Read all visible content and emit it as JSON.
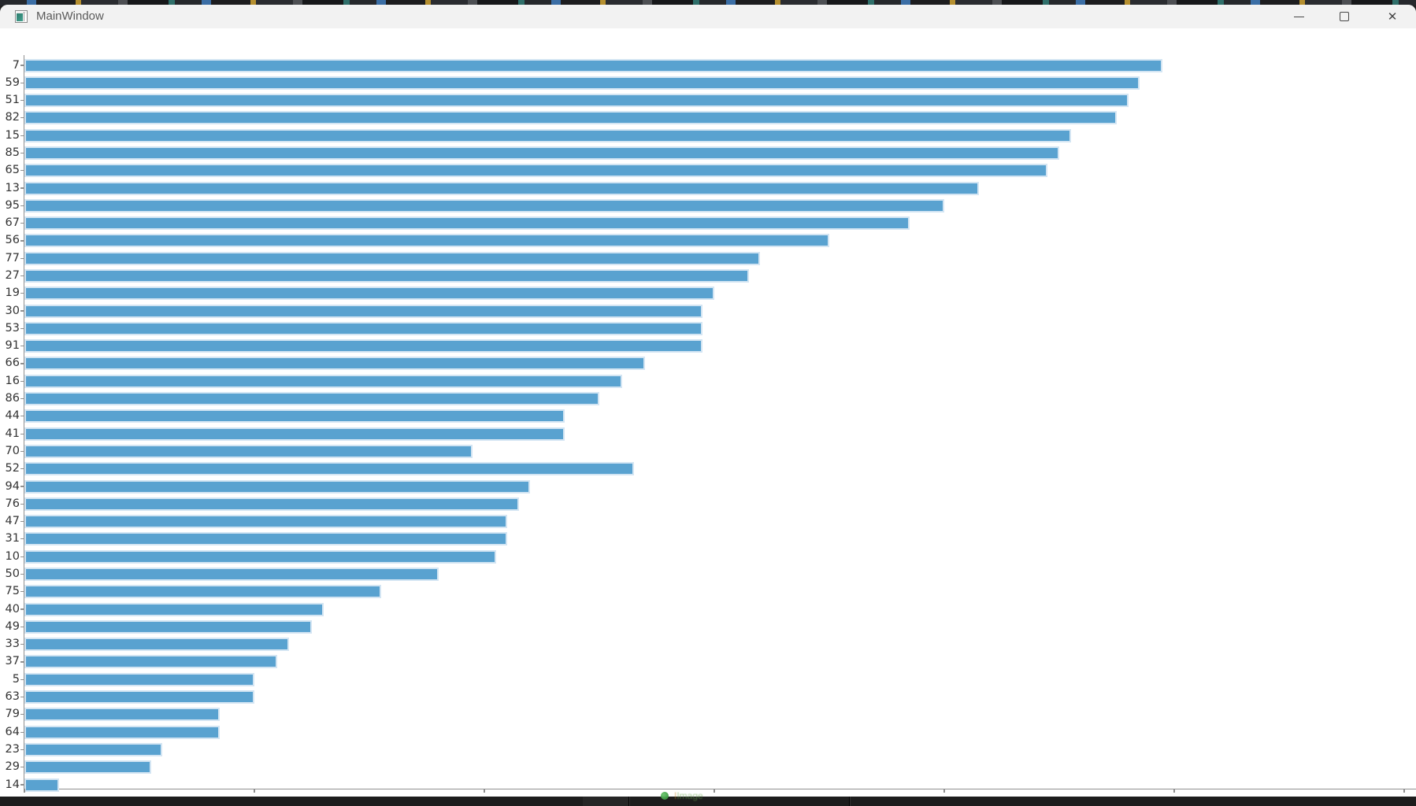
{
  "window": {
    "title": "MainWindow",
    "icon": "qt-app-icon",
    "controls": [
      {
        "name": "minimize-icon"
      },
      {
        "name": "maximize-icon"
      },
      {
        "name": "close-icon",
        "glyph": "✕"
      }
    ]
  },
  "chart_data": {
    "type": "bar",
    "orientation": "horizontal",
    "title": "",
    "xlabel": "",
    "ylabel": "",
    "categories": [
      "7",
      "59",
      "51",
      "82",
      "15",
      "85",
      "65",
      "13",
      "95",
      "67",
      "56",
      "77",
      "27",
      "19",
      "30",
      "53",
      "91",
      "66",
      "16",
      "86",
      "44",
      "41",
      "70",
      "52",
      "94",
      "76",
      "47",
      "31",
      "10",
      "50",
      "75",
      "40",
      "49",
      "33",
      "37",
      "5",
      "63",
      "79",
      "64",
      "23",
      "29",
      "14"
    ],
    "values": [
      99,
      97,
      96,
      95,
      91,
      90,
      89,
      83,
      80,
      77,
      70,
      64,
      63,
      60,
      59,
      59,
      59,
      54,
      52,
      50,
      47,
      47,
      39,
      53,
      44,
      43,
      42,
      42,
      41,
      36,
      31,
      26,
      25,
      23,
      22,
      20,
      20,
      17,
      17,
      12,
      11,
      3
    ],
    "x_ticks": [
      0,
      20,
      40,
      60,
      80,
      100,
      120
    ],
    "xlim": [
      0,
      121
    ],
    "grid": false,
    "legend": null,
    "bar_color": "#59a2d0",
    "bar_edge_color": "#d3e5f3",
    "axis_color": "#8f8f8f",
    "tick_label_color": "#333333",
    "background_color": "#ffffff"
  },
  "taskbar": {
    "toast_label": "Image",
    "icon": "green-status-icon"
  }
}
